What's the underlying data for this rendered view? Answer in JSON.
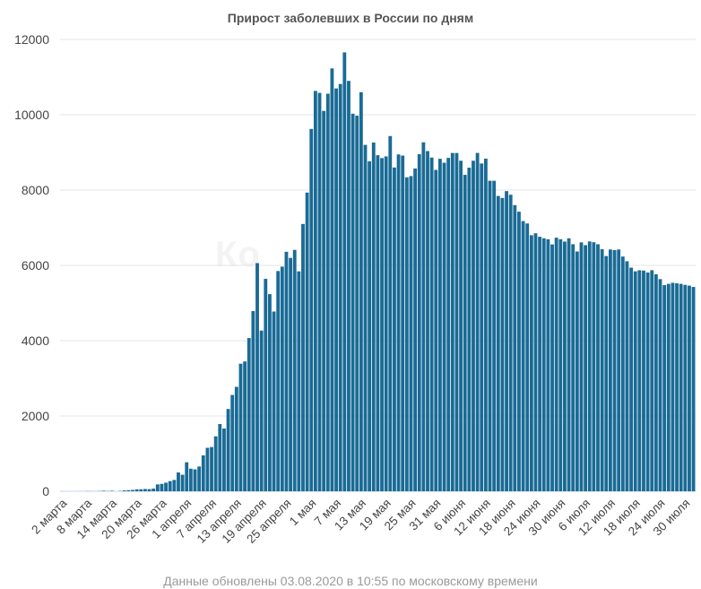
{
  "chart_data": {
    "type": "bar",
    "title": "Прирост заболевших в России по дням",
    "xlabel": "",
    "ylabel": "",
    "ylim": [
      0,
      12000
    ],
    "yticks": [
      0,
      2000,
      4000,
      6000,
      8000,
      10000,
      12000
    ],
    "grid": true,
    "color": "#1a6b96",
    "x_tick_labels": [
      "2 марта",
      "8 марта",
      "14 марта",
      "20 марта",
      "26 марта",
      "1 апреля",
      "7 апреля",
      "13 апреля",
      "19 апреля",
      "25 апреля",
      "1 мая",
      "7 мая",
      "13 мая",
      "19 мая",
      "25 мая",
      "31 мая",
      "6 июня",
      "12 июня",
      "18 июня",
      "24 июня",
      "30 июня",
      "6 июля",
      "12 июля",
      "18 июля",
      "24 июля",
      "30 июля"
    ],
    "start_date": "2 марта",
    "values": [
      2,
      0,
      0,
      0,
      1,
      1,
      4,
      3,
      1,
      6,
      14,
      6,
      13,
      0,
      8,
      23,
      29,
      36,
      52,
      54,
      61,
      57,
      71,
      182,
      196,
      228,
      270,
      302,
      500,
      440,
      771,
      601,
      582,
      658,
      954,
      1154,
      1175,
      1459,
      1786,
      1667,
      2186,
      2558,
      2774,
      3388,
      3448,
      4070,
      4785,
      6060,
      4268,
      5642,
      5236,
      4774,
      5849,
      5966,
      6361,
      6198,
      6411,
      5841,
      7099,
      7933,
      9623,
      10633,
      10581,
      10102,
      10559,
      11231,
      10699,
      10817,
      11656,
      10899,
      10028,
      9974,
      10598,
      9200,
      8764,
      9263,
      8926,
      8849,
      8894,
      9434,
      8599,
      8946,
      8915,
      8338,
      8371,
      8572,
      8952,
      9268,
      9035,
      8863,
      8536,
      8831,
      8726,
      8855,
      8985,
      8984,
      8779,
      8404,
      8595,
      8779,
      8987,
      8706,
      8835,
      8248,
      8246,
      7843,
      7790,
      7972,
      7876,
      7600,
      7425,
      7176,
      7113,
      6800,
      6852,
      6760,
      6719,
      6693,
      6556,
      6736,
      6693,
      6632,
      6719,
      6562,
      6368,
      6611,
      6537,
      6635,
      6615,
      6562,
      6428,
      6248,
      6422,
      6406,
      6422,
      6234,
      6109,
      5940,
      5842,
      5871,
      5862,
      5811,
      5871,
      5765,
      5635,
      5475,
      5509,
      5537,
      5523,
      5509,
      5482,
      5462,
      5427
    ]
  },
  "watermark": "Ко",
  "footer": "Данные обновлены 03.08.2020 в 10:55 по московскому времени"
}
